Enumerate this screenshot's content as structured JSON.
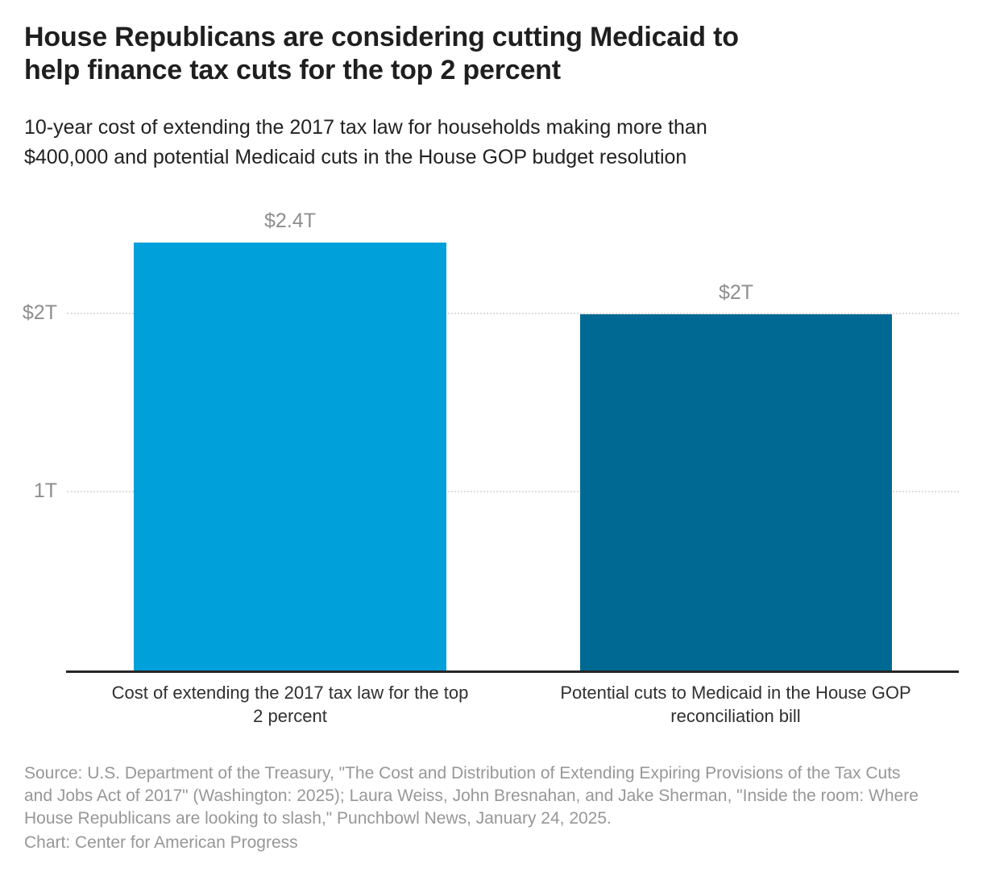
{
  "header": {
    "title_lines": [
      "House Republicans are considering cutting Medicaid to",
      "help finance tax cuts for the top 2 percent"
    ],
    "subtitle_lines": [
      "10-year cost of extending the 2017 tax law for households making more than",
      "$400,000 and potential Medicaid cuts in the House GOP budget resolution"
    ]
  },
  "chart_data": {
    "type": "bar",
    "title": "House Republicans are considering cutting Medicaid to help finance tax cuts for the top 2 percent",
    "subtitle": "10-year cost of extending the 2017 tax law for households making more than $400,000 and potential Medicaid cuts in the House GOP budget resolution",
    "categories": [
      "Cost of extending the 2017 tax law for the top 2 percent",
      "Potential cuts to Medicaid in the House GOP reconciliation bill"
    ],
    "category_lines": [
      [
        "Cost of extending the 2017 tax law for the top",
        "2 percent"
      ],
      [
        "Potential cuts to Medicaid in the House GOP",
        "reconciliation bill"
      ]
    ],
    "values": [
      2.4,
      2.0
    ],
    "value_labels": [
      "$2.4T",
      "$2T"
    ],
    "unit": "trillions of U.S. dollars",
    "bar_colors": [
      "#00A0DA",
      "#006993"
    ],
    "ytick_values": [
      2,
      1
    ],
    "ytick_labels": [
      "$2T",
      "1T"
    ],
    "ylim": [
      0,
      2.63
    ],
    "grid": "horizontal dotted",
    "legend": "none"
  },
  "footer": {
    "source_lines": [
      "Source: U.S. Department of the Treasury, \"The Cost and Distribution of Extending Expiring Provisions of the Tax Cuts",
      "and Jobs Act of 2017\" (Washington: 2025); Laura Weiss, John Bresnahan, and Jake Sherman, \"Inside the room: Where",
      "House Republicans are looking to slash,\" Punchbowl News, January 24, 2025."
    ],
    "credit": "Chart: Center for American Progress"
  },
  "colors": {
    "title_text": "#1f1f1f",
    "subtitle_text": "#222222",
    "axis_line": "#262626",
    "gridline": "#dcdcdc",
    "tick_text": "#8e8e8e",
    "category_text": "#303030",
    "source_text": "#979797",
    "background": "#ffffff"
  }
}
